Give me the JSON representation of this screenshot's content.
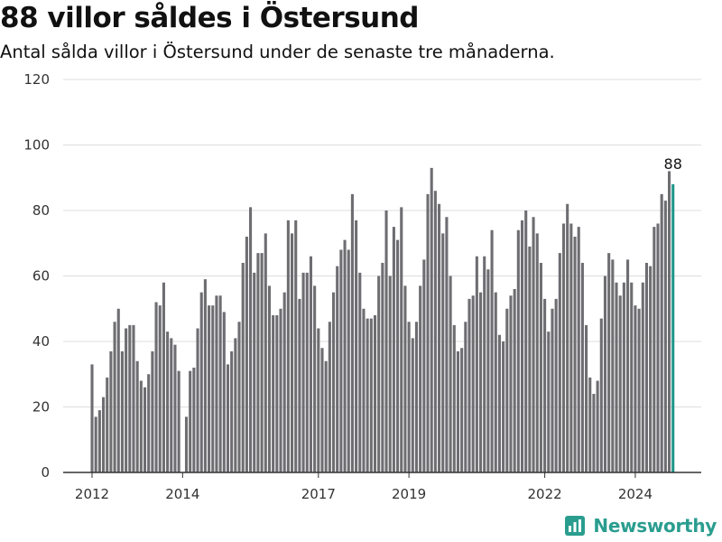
{
  "header": {
    "title": "88 villor såldes i Östersund",
    "subtitle": "Antal sålda villor i Östersund under de senaste tre månaderna."
  },
  "brand": {
    "name": "Newsworthy",
    "icon": "newsworthy-logo-icon",
    "color": "#2a9d8f"
  },
  "colors": {
    "bar": "#6e6d72",
    "highlight": "#21968a",
    "grid": "#dddddd",
    "axis": "#333333"
  },
  "chart_data": {
    "type": "bar",
    "title": "88 villor såldes i Östersund",
    "subtitle": "Antal sålda villor i Östersund under de senaste tre månaderna.",
    "xlabel": "",
    "ylabel": "",
    "ylim": [
      0,
      120
    ],
    "yticks": [
      0,
      20,
      40,
      60,
      80,
      100,
      120
    ],
    "grid": true,
    "x_start": "2012-01",
    "x_step": "month",
    "xtick_labels": [
      {
        "label": "2012",
        "date": "2012-01"
      },
      {
        "label": "2014",
        "date": "2014-01"
      },
      {
        "label": "2017",
        "date": "2017-01"
      },
      {
        "label": "2019",
        "date": "2019-01"
      },
      {
        "label": "2022",
        "date": "2022-01"
      },
      {
        "label": "2024",
        "date": "2024-01"
      }
    ],
    "values": [
      33,
      17,
      19,
      23,
      29,
      37,
      46,
      50,
      37,
      44,
      45,
      45,
      34,
      28,
      26,
      30,
      37,
      52,
      51,
      58,
      43,
      41,
      39,
      31,
      null,
      17,
      31,
      32,
      44,
      55,
      59,
      51,
      51,
      54,
      54,
      49,
      33,
      37,
      41,
      46,
      64,
      72,
      81,
      61,
      67,
      67,
      73,
      57,
      48,
      48,
      50,
      55,
      77,
      73,
      77,
      53,
      61,
      61,
      66,
      57,
      44,
      38,
      34,
      46,
      55,
      63,
      68,
      71,
      68,
      85,
      77,
      61,
      50,
      47,
      47,
      48,
      60,
      64,
      80,
      60,
      75,
      71,
      81,
      57,
      46,
      41,
      46,
      57,
      65,
      85,
      93,
      86,
      82,
      73,
      78,
      60,
      45,
      37,
      38,
      46,
      53,
      54,
      66,
      55,
      66,
      62,
      74,
      55,
      42,
      40,
      50,
      54,
      56,
      74,
      77,
      80,
      69,
      78,
      73,
      64,
      53,
      43,
      50,
      53,
      67,
      76,
      82,
      76,
      72,
      75,
      64,
      45,
      29,
      24,
      28,
      47,
      60,
      67,
      65,
      58,
      54,
      58,
      65,
      58,
      51,
      50,
      58,
      64,
      63,
      75,
      76,
      85,
      83,
      92,
      88
    ],
    "highlight": {
      "index": 154,
      "value": 88,
      "label": "88"
    }
  }
}
